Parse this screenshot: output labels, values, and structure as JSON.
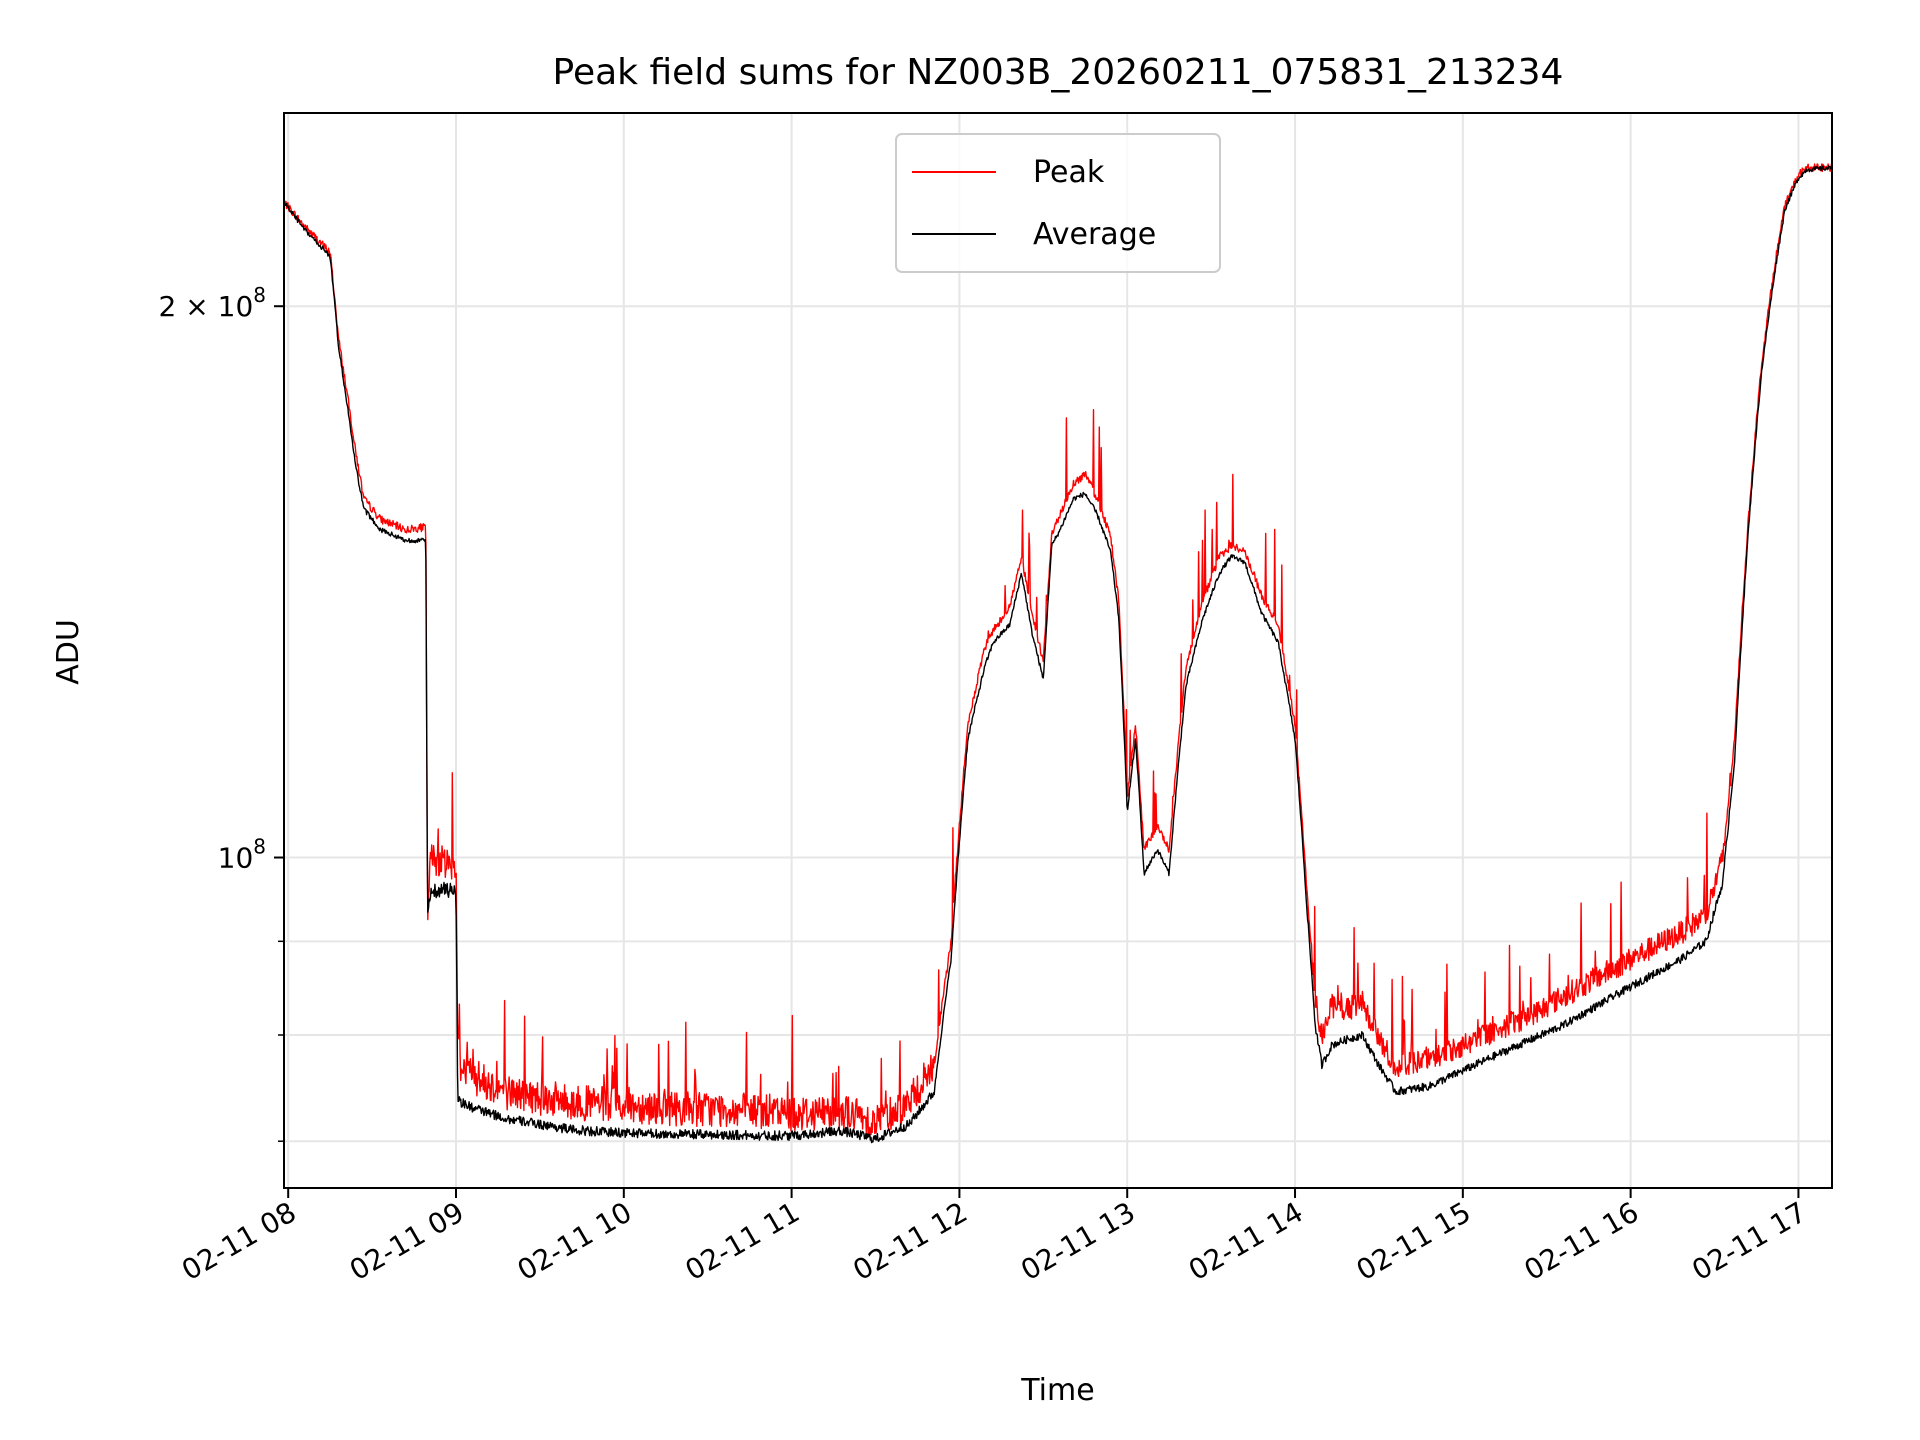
{
  "chart_data": {
    "type": "line",
    "title": "Peak field sums for NZ003B_20260211_075831_213234",
    "xlabel": "Time",
    "ylabel": "ADU",
    "yscale": "log",
    "xlim": [
      7.975,
      17.2
    ],
    "ylim": [
      66000000,
      255000000
    ],
    "grid": true,
    "legend_position": "top-center",
    "x_ticks": [
      {
        "value": 8,
        "label": "02-11 08"
      },
      {
        "value": 9,
        "label": "02-11 09"
      },
      {
        "value": 10,
        "label": "02-11 10"
      },
      {
        "value": 11,
        "label": "02-11 11"
      },
      {
        "value": 12,
        "label": "02-11 12"
      },
      {
        "value": 13,
        "label": "02-11 13"
      },
      {
        "value": 14,
        "label": "02-11 14"
      },
      {
        "value": 15,
        "label": "02-11 15"
      },
      {
        "value": 16,
        "label": "02-11 16"
      },
      {
        "value": 17,
        "label": "02-11 17"
      }
    ],
    "y_major_ticks": [
      {
        "value": 100000000,
        "base": "10",
        "exp": "8",
        "mantissa": ""
      },
      {
        "value": 200000000,
        "base": "10",
        "exp": "8",
        "mantissa": "2 × "
      }
    ],
    "y_minor_ticks": [
      70000000,
      80000000,
      90000000
    ],
    "series": [
      {
        "name": "Peak",
        "color": "#ff0000",
        "x": [
          7.975,
          8.1,
          8.25,
          8.3,
          8.4,
          8.45,
          8.55,
          8.7,
          8.82,
          8.83,
          8.85,
          9.0,
          9.01,
          9.03,
          9.1,
          9.3,
          9.5,
          9.7,
          9.9,
          10.1,
          10.3,
          10.5,
          10.8,
          11.0,
          11.3,
          11.5,
          11.7,
          11.85,
          11.95,
          12.05,
          12.15,
          12.2,
          12.3,
          12.37,
          12.43,
          12.5,
          12.55,
          12.6,
          12.68,
          12.75,
          12.82,
          12.9,
          12.95,
          13.0,
          13.05,
          13.1,
          13.18,
          13.25,
          13.35,
          13.45,
          13.55,
          13.62,
          13.7,
          13.8,
          13.9,
          14.0,
          14.07,
          14.12,
          14.16,
          14.22,
          14.3,
          14.4,
          14.5,
          14.6,
          14.8,
          15.0,
          15.2,
          15.4,
          15.6,
          15.8,
          16.0,
          16.15,
          16.3,
          16.45,
          16.55,
          16.62,
          16.7,
          16.78,
          16.86,
          16.92,
          17.0,
          17.05,
          17.2
        ],
        "y": [
          228000000,
          221000000,
          214000000,
          192000000,
          167000000,
          157000000,
          153000000,
          151000000,
          151500000,
          93000000,
          100000000,
          99000000,
          80000000,
          77000000,
          76000000,
          74500000,
          74000000,
          73500000,
          73300000,
          73200000,
          73000000,
          72900000,
          72700000,
          72500000,
          72700000,
          71800000,
          73500000,
          77000000,
          90000000,
          118000000,
          130000000,
          133000000,
          137000000,
          146000000,
          136000000,
          128000000,
          150000000,
          154000000,
          160000000,
          162000000,
          157000000,
          150000000,
          138000000,
          108000000,
          118000000,
          101000000,
          104000000,
          101000000,
          127000000,
          138000000,
          146000000,
          148000000,
          147000000,
          139000000,
          134000000,
          118000000,
          96000000,
          84000000,
          80000000,
          83000000,
          82500000,
          83500000,
          79500000,
          77000000,
          77500000,
          79000000,
          80500000,
          82000000,
          84000000,
          86000000,
          88000000,
          89500000,
          91000000,
          93000000,
          100000000,
          116000000,
          152000000,
          186000000,
          211000000,
          227000000,
          236000000,
          238000000,
          238000000
        ]
      },
      {
        "name": "Average",
        "color": "#000000",
        "x": [
          7.975,
          8.1,
          8.25,
          8.3,
          8.4,
          8.45,
          8.55,
          8.7,
          8.82,
          8.83,
          8.85,
          9.0,
          9.01,
          9.03,
          9.1,
          9.3,
          9.5,
          9.7,
          9.9,
          10.1,
          10.3,
          10.5,
          10.8,
          11.0,
          11.3,
          11.5,
          11.7,
          11.85,
          11.95,
          12.05,
          12.15,
          12.2,
          12.3,
          12.37,
          12.43,
          12.5,
          12.55,
          12.6,
          12.68,
          12.75,
          12.82,
          12.9,
          12.95,
          13.0,
          13.05,
          13.1,
          13.18,
          13.25,
          13.35,
          13.45,
          13.55,
          13.62,
          13.7,
          13.8,
          13.9,
          14.0,
          14.07,
          14.12,
          14.16,
          14.22,
          14.3,
          14.4,
          14.5,
          14.6,
          14.8,
          15.0,
          15.2,
          15.4,
          15.6,
          15.8,
          16.0,
          16.15,
          16.3,
          16.45,
          16.55,
          16.62,
          16.7,
          16.78,
          16.86,
          16.92,
          17.0,
          17.05,
          17.2
        ],
        "y": [
          228000000,
          220000000,
          213000000,
          190000000,
          164000000,
          155000000,
          151000000,
          149000000,
          149000000,
          92000000,
          96000000,
          96000000,
          74000000,
          73500000,
          73000000,
          72000000,
          71500000,
          71000000,
          70800000,
          70700000,
          70600000,
          70600000,
          70500000,
          70500000,
          70900000,
          70200000,
          71500000,
          74500000,
          88000000,
          116000000,
          127000000,
          131000000,
          134000000,
          143000000,
          133000000,
          125000000,
          148000000,
          151000000,
          157000000,
          158000000,
          154000000,
          147000000,
          135000000,
          106000000,
          116000000,
          98000000,
          101000000,
          98000000,
          124000000,
          135000000,
          143000000,
          146000000,
          145000000,
          136000000,
          131000000,
          116000000,
          94000000,
          81000000,
          77000000,
          79000000,
          79500000,
          80000000,
          77000000,
          74500000,
          75000000,
          76500000,
          78000000,
          79500000,
          81000000,
          83000000,
          85000000,
          86500000,
          88000000,
          90000000,
          97000000,
          113000000,
          150000000,
          184000000,
          209000000,
          226000000,
          235000000,
          237500000,
          238000000
        ]
      }
    ]
  }
}
